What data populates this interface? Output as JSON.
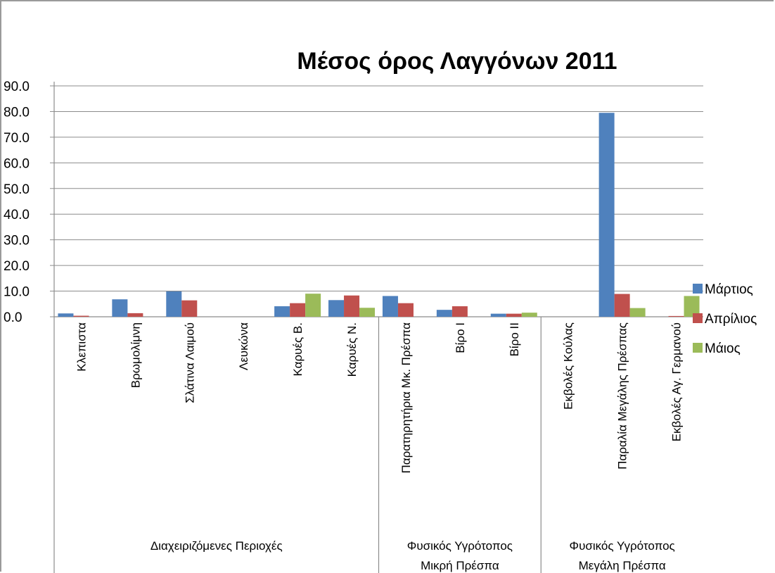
{
  "chart_data": {
    "type": "bar",
    "title": "Μέσος όρος Λαγγόνων 2011",
    "xlabel": "",
    "ylabel": "",
    "ylim": [
      0,
      90
    ],
    "yticks": [
      "0.0",
      "10.0",
      "20.0",
      "30.0",
      "40.0",
      "50.0",
      "60.0",
      "70.0",
      "80.0",
      "90.0"
    ],
    "grid": true,
    "legend_position": "right",
    "categories": [
      "Κλεπιστα",
      "Βρωμολίμνη",
      "Σλάτινα Λαιμού",
      "Λευκώνα",
      "Καρυές Β.",
      "Καρυές Ν.",
      "Παρατηρητήρια Μκ. Πρέσπα",
      "Βίρο Ι",
      "Βίρο ΙΙ",
      "Εκβολές Κούλας",
      "Παραλία Μεγάλης Πρέσπας",
      "Εκβολές Αγ. Γερμανού"
    ],
    "groups": [
      {
        "label_lines": [
          "Διαχειριζόμενες Περιοχές"
        ],
        "count": 6
      },
      {
        "label_lines": [
          "Φυσικός Υγρότοπος",
          "Μικρή Πρέσπα"
        ],
        "count": 3
      },
      {
        "label_lines": [
          "Φυσικός Υγρότοπος",
          "Μεγάλη Πρέσπα"
        ],
        "count": 3
      }
    ],
    "series": [
      {
        "name": "Μάρτιος",
        "color": "#4f81bd",
        "values": [
          1.3,
          6.8,
          9.9,
          0,
          4.1,
          6.5,
          8.1,
          2.7,
          1.2,
          0,
          79.5,
          0
        ]
      },
      {
        "name": "Απρίλιος",
        "color": "#c0504d",
        "values": [
          0.4,
          1.4,
          6.4,
          0,
          5.3,
          8.3,
          5.3,
          4.1,
          1.2,
          0,
          8.9,
          0.3
        ]
      },
      {
        "name": "Μάιος",
        "color": "#9bbb59",
        "values": [
          0,
          0,
          0,
          0,
          9.0,
          3.5,
          0,
          0,
          1.6,
          0,
          3.4,
          8.1
        ]
      }
    ]
  }
}
